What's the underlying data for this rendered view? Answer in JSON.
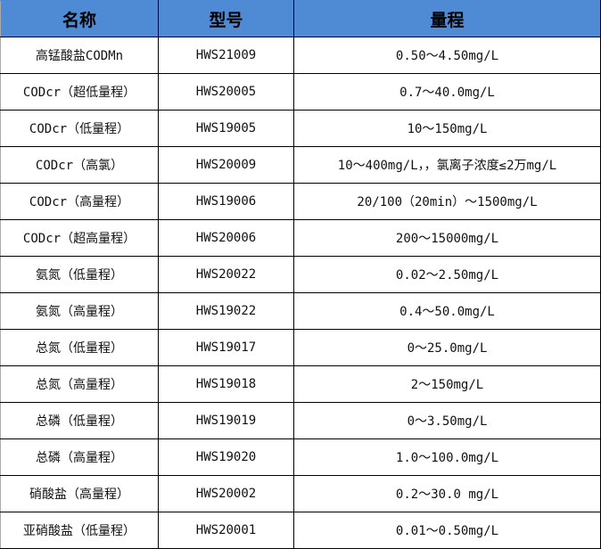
{
  "headers": [
    "名称",
    "型号",
    "量程"
  ],
  "rows": [
    [
      "高锰酸盐CODMn",
      "HWS21009",
      "0.50～4.50mg/L"
    ],
    [
      "CODcr（超低量程）",
      "HWS20005",
      "0.7～40.0mg/L"
    ],
    [
      "CODcr（低量程）",
      "HWS19005",
      "10～150mg/L"
    ],
    [
      "CODcr（高氯）",
      "HWS20009",
      "10～400mg/L，，氯离子浓度≤2万mg/L"
    ],
    [
      "CODcr（高量程）",
      "HWS19006",
      "20/100（20min）～1500mg/L"
    ],
    [
      "CODcr（超高量程）",
      "HWS20006",
      "200～15000mg/L"
    ],
    [
      "氨氮（低量程）",
      "HWS20022",
      "0.02～2.50mg/L"
    ],
    [
      "氨氮（高量程）",
      "HWS19022",
      "0.4～50.0mg/L"
    ],
    [
      "总氮（低量程）",
      "HWS19017",
      "0～25.0mg/L"
    ],
    [
      "总氮（高量程）",
      "HWS19018",
      "2～150mg/L"
    ],
    [
      "总磷（低量程）",
      "HWS19019",
      "0～3.50mg/L"
    ],
    [
      "总磷（高量程）",
      "HWS19020",
      "1.0～100.0mg/L"
    ],
    [
      "硝酸盐（高量程）",
      "HWS20002",
      "0.2～30.0 mg/L"
    ],
    [
      "亚硝酸盐（低量程）",
      "HWS20001",
      "0.01～0.50mg/L"
    ]
  ],
  "colors": {
    "header_bg": "#4F8BD4"
  }
}
